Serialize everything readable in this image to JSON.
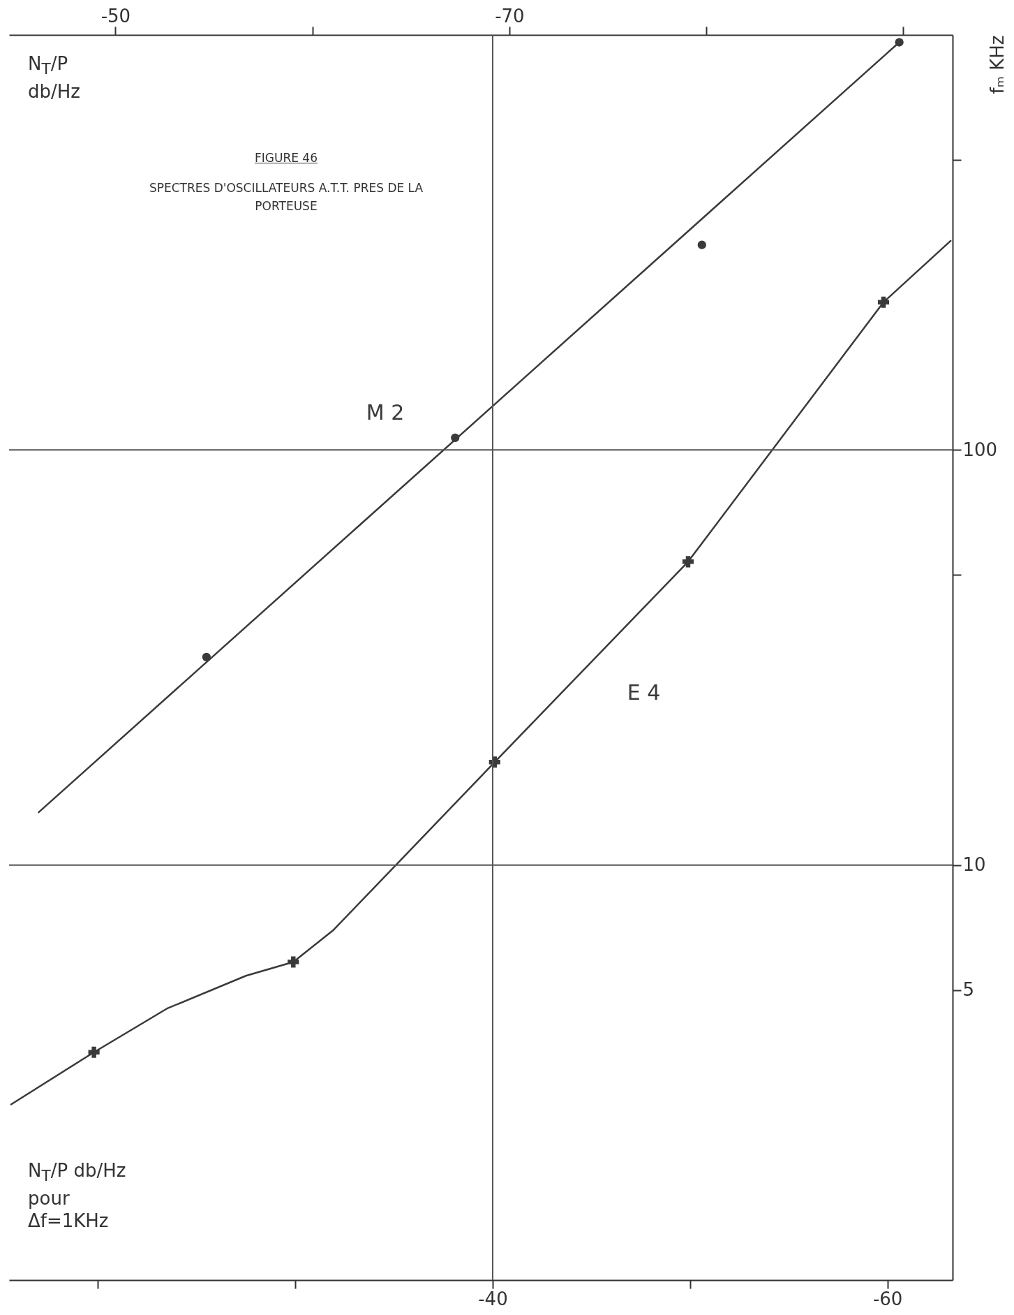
{
  "chart_data": {
    "type": "line",
    "title": "FIGURE 46",
    "subtitle": "SPECTRES D'OSCILLATEURS A.T.T. PRES DE LA PORTEUSE",
    "ylabel": "fₘ KHz",
    "xlabel": "N$_{T}$/P db/Hz pour Δf=1KHz",
    "x2label": "N$_{T}$/P db/Hz",
    "log": "y",
    "ylim": [
      1,
      1000
    ],
    "yticks": [
      5,
      10,
      {
        "value": 50,
        "label": null
      },
      100,
      {
        "value": 500,
        "label": null
      }
    ],
    "xlim": [
      -15.5,
      -63.3
    ],
    "xticks": [
      {
        "value": -20,
        "label": null
      },
      {
        "value": -30,
        "label": null
      },
      -40,
      {
        "value": -50,
        "label": null
      },
      -60
    ],
    "x2lim": [
      -44.6,
      -92.5
    ],
    "x2ticks": [
      -50,
      {
        "value": -60,
        "label": null
      },
      -70,
      {
        "value": -80,
        "label": null
      },
      {
        "value": -90,
        "label": null
      }
    ],
    "ref_lines": [
      {
        "axis": "y",
        "value": 10
      },
      {
        "axis": "y",
        "value": 100
      },
      {
        "axis": "x",
        "value": -40
      }
    ],
    "series": [
      {
        "name": "M 2",
        "color": "#3a3a3a",
        "x": [
          -17.0,
          -60.6
        ],
        "values": [
          13.4,
          960
        ]
      },
      {
        "type": "scatter",
        "marker": "circle",
        "color": "#3a3a3a",
        "x": [
          -25.5,
          -38.1,
          -50.6,
          -60.6
        ],
        "values": [
          31.7,
          107,
          312,
          960
        ]
      },
      {
        "name": "E 4",
        "color": "#3a3a3a",
        "x": [
          -15.6,
          -19.8,
          -23.5,
          -27.5,
          -29.9,
          -31.9,
          -35.1,
          -40.1,
          -49.9,
          -59.8,
          -63.2
        ],
        "values": [
          2.65,
          3.54,
          4.51,
          5.41,
          5.84,
          6.95,
          10,
          17.7,
          53.8,
          227,
          319
        ]
      },
      {
        "type": "scatter",
        "marker": "cross",
        "color": "#3a3a3a",
        "x": [
          -19.8,
          -29.9,
          -40.1,
          -49.9,
          -59.8
        ],
        "values": [
          3.54,
          5.84,
          17.7,
          53.8,
          227
        ]
      }
    ]
  }
}
